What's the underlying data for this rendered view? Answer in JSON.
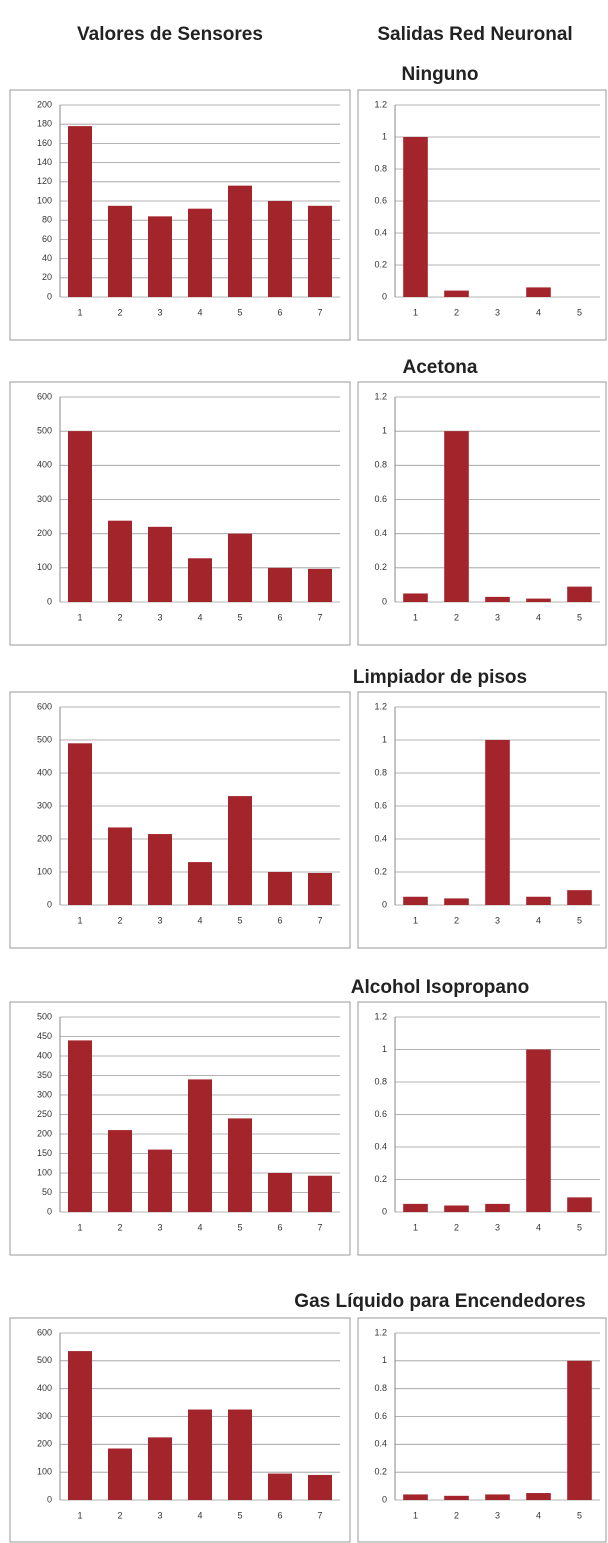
{
  "headers": [
    "Valores de Sensores",
    "Salidas Red Neuronal"
  ],
  "sections": [
    "Ninguno",
    "Acetona",
    "Limpiador de pisos",
    "Alcohol Isopropano",
    "Gas Líquido para Encendedores"
  ],
  "chart_data": [
    {
      "type": "bar",
      "categories": [
        "1",
        "2",
        "3",
        "4",
        "5",
        "6",
        "7"
      ],
      "values": [
        178,
        95,
        84,
        92,
        116,
        100,
        95
      ],
      "color": "#a3242b",
      "ylim": [
        0,
        200
      ],
      "yticks": [
        0,
        20,
        40,
        60,
        80,
        100,
        120,
        140,
        160,
        180,
        200
      ],
      "grid": true
    },
    {
      "type": "bar",
      "categories": [
        "1",
        "2",
        "3",
        "4",
        "5"
      ],
      "values": [
        1,
        0.04,
        0,
        0.06,
        0
      ],
      "color": "#a3242b",
      "ylim": [
        0,
        1.2
      ],
      "yticks": [
        0,
        0.2,
        0.4,
        0.6,
        0.8,
        1,
        1.2
      ],
      "grid": true
    },
    {
      "type": "bar",
      "categories": [
        "1",
        "2",
        "3",
        "4",
        "5",
        "6",
        "7"
      ],
      "values": [
        500,
        238,
        220,
        128,
        200,
        100,
        97
      ],
      "color": "#a3242b",
      "ylim": [
        0,
        600
      ],
      "yticks": [
        0,
        100,
        200,
        300,
        400,
        500,
        600
      ],
      "grid": true
    },
    {
      "type": "bar",
      "categories": [
        "1",
        "2",
        "3",
        "4",
        "5"
      ],
      "values": [
        0.05,
        1,
        0.03,
        0.02,
        0.09
      ],
      "color": "#a3242b",
      "ylim": [
        0,
        1.2
      ],
      "yticks": [
        0,
        0.2,
        0.4,
        0.6,
        0.8,
        1,
        1.2
      ],
      "grid": true
    },
    {
      "type": "bar",
      "categories": [
        "1",
        "2",
        "3",
        "4",
        "5",
        "6",
        "7"
      ],
      "values": [
        490,
        235,
        215,
        130,
        330,
        100,
        97
      ],
      "color": "#a3242b",
      "ylim": [
        0,
        600
      ],
      "yticks": [
        0,
        100,
        200,
        300,
        400,
        500,
        600
      ],
      "grid": true
    },
    {
      "type": "bar",
      "categories": [
        "1",
        "2",
        "3",
        "4",
        "5"
      ],
      "values": [
        0.05,
        0.04,
        1,
        0.05,
        0.09
      ],
      "color": "#a3242b",
      "ylim": [
        0,
        1.2
      ],
      "yticks": [
        0,
        0.2,
        0.4,
        0.6,
        0.8,
        1,
        1.2
      ],
      "grid": true
    },
    {
      "type": "bar",
      "categories": [
        "1",
        "2",
        "3",
        "4",
        "5",
        "6",
        "7"
      ],
      "values": [
        440,
        210,
        160,
        340,
        240,
        100,
        93
      ],
      "color": "#a3242b",
      "ylim": [
        0,
        500
      ],
      "yticks": [
        0,
        50,
        100,
        150,
        200,
        250,
        300,
        350,
        400,
        450,
        500
      ],
      "grid": true
    },
    {
      "type": "bar",
      "categories": [
        "1",
        "2",
        "3",
        "4",
        "5"
      ],
      "values": [
        0.05,
        0.04,
        0.05,
        1,
        0.09
      ],
      "color": "#a3242b",
      "ylim": [
        0,
        1.2
      ],
      "yticks": [
        0,
        0.2,
        0.4,
        0.6,
        0.8,
        1,
        1.2
      ],
      "grid": true
    },
    {
      "type": "bar",
      "categories": [
        "1",
        "2",
        "3",
        "4",
        "5",
        "6",
        "7"
      ],
      "values": [
        535,
        185,
        225,
        325,
        325,
        95,
        90
      ],
      "color": "#a3242b",
      "ylim": [
        0,
        600
      ],
      "yticks": [
        0,
        100,
        200,
        300,
        400,
        500,
        600
      ],
      "grid": true
    },
    {
      "type": "bar",
      "categories": [
        "1",
        "2",
        "3",
        "4",
        "5"
      ],
      "values": [
        0.04,
        0.03,
        0.04,
        0.05,
        1
      ],
      "color": "#a3242b",
      "ylim": [
        0,
        1.2
      ],
      "yticks": [
        0,
        0.2,
        0.4,
        0.6,
        0.8,
        1,
        1.2
      ],
      "grid": true
    }
  ]
}
